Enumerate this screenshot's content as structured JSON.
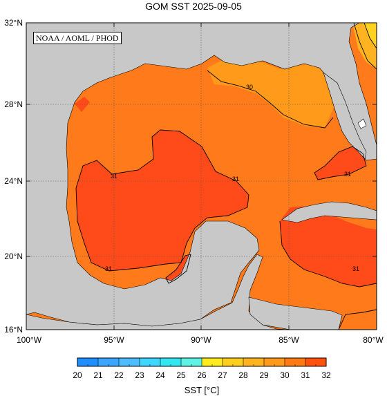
{
  "title": "GOM SST  2025-09-05",
  "credit": "NOAA / AOML / PHOD",
  "lat_labels": [
    "32°N",
    "28°N",
    "24°N",
    "20°N",
    "16°N"
  ],
  "lon_labels": [
    "100°W",
    "95°W",
    "90°W",
    "85°W",
    "80°W"
  ],
  "contour_labels": [
    "30",
    "31",
    "31",
    "31",
    "31",
    "31"
  ],
  "colorbar": {
    "ticks": [
      "20",
      "21",
      "22",
      "23",
      "24",
      "25",
      "26",
      "27",
      "28",
      "29",
      "30",
      "31",
      "32"
    ],
    "label": "SST [°C]",
    "colors": [
      "#1f8fff",
      "#3aa6ff",
      "#4dbdff",
      "#3fd6ff",
      "#33e7f2",
      "#5ff3e6",
      "#ffec1f",
      "#ffcf1f",
      "#ffb31f",
      "#ff9a1a",
      "#ff7a12",
      "#ff520c"
    ]
  },
  "colors": {
    "land": "#c8c8c8",
    "sst_29": "#ff9a1a",
    "sst_30": "#ff7a1a",
    "sst_31": "#ff4a1a",
    "sst_28": "#ffb320",
    "sst_27": "#ffd21f"
  }
}
